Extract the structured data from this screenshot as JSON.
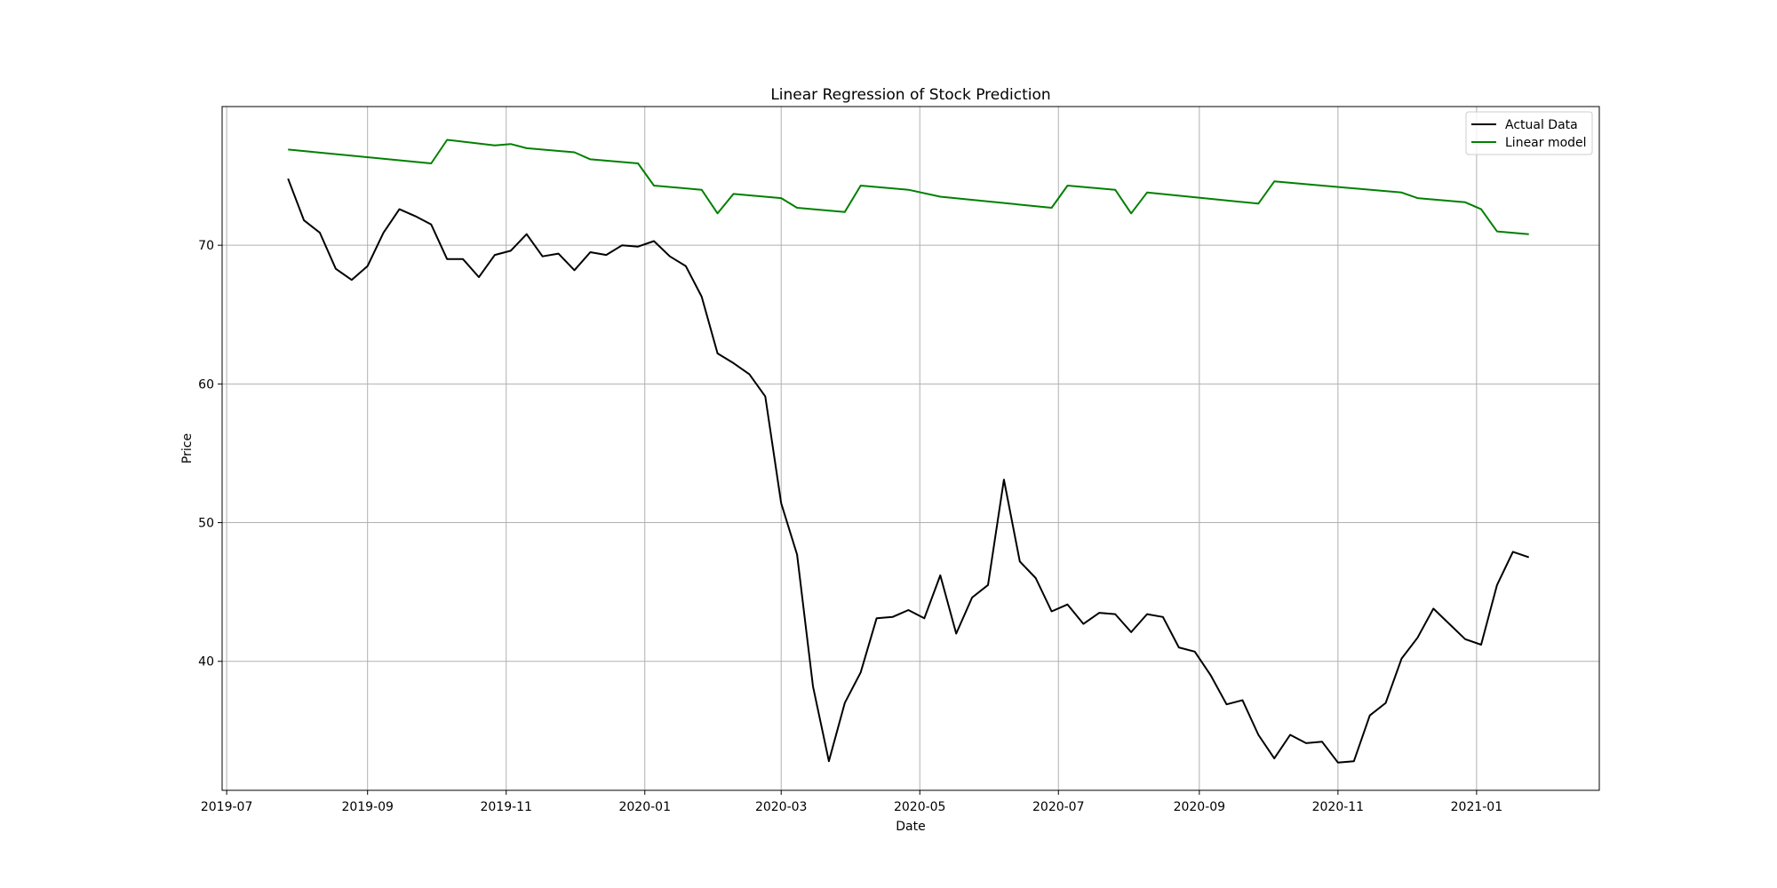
{
  "chart_data": {
    "type": "line",
    "title": "Linear Regression of Stock Prediction",
    "xlabel": "Date",
    "ylabel": "Price",
    "x_ticks": [
      "2019-07",
      "2019-09",
      "2019-11",
      "2020-01",
      "2020-03",
      "2020-05",
      "2020-07",
      "2020-09",
      "2020-11",
      "2021-01"
    ],
    "x_tick_dates": [
      "2019-07-01",
      "2019-09-01",
      "2019-11-01",
      "2020-01-01",
      "2020-03-01",
      "2020-05-01",
      "2020-07-01",
      "2020-09-01",
      "2020-11-01",
      "2021-01-01"
    ],
    "xlim": [
      "2019-06-29",
      "2021-02-24"
    ],
    "y_ticks": [
      40,
      50,
      60,
      70
    ],
    "ylim": [
      30.7,
      80.0
    ],
    "grid": true,
    "legend_position": "top-right",
    "series": [
      {
        "name": "Actual Data",
        "color": "#000000",
        "points": [
          [
            "2019-07-28",
            74.8
          ],
          [
            "2019-08-04",
            71.8
          ],
          [
            "2019-08-11",
            70.9
          ],
          [
            "2019-08-18",
            68.3
          ],
          [
            "2019-08-25",
            67.5
          ],
          [
            "2019-09-01",
            68.5
          ],
          [
            "2019-09-08",
            70.9
          ],
          [
            "2019-09-15",
            72.6
          ],
          [
            "2019-09-22",
            72.1
          ],
          [
            "2019-09-29",
            71.5
          ],
          [
            "2019-10-06",
            69.0
          ],
          [
            "2019-10-13",
            69.0
          ],
          [
            "2019-10-20",
            67.7
          ],
          [
            "2019-10-27",
            69.3
          ],
          [
            "2019-11-03",
            69.6
          ],
          [
            "2019-11-10",
            70.8
          ],
          [
            "2019-11-17",
            69.2
          ],
          [
            "2019-11-24",
            69.4
          ],
          [
            "2019-12-01",
            68.2
          ],
          [
            "2019-12-08",
            69.5
          ],
          [
            "2019-12-15",
            69.3
          ],
          [
            "2019-12-22",
            70.0
          ],
          [
            "2019-12-29",
            69.9
          ],
          [
            "2020-01-05",
            70.3
          ],
          [
            "2020-01-12",
            69.2
          ],
          [
            "2020-01-19",
            68.5
          ],
          [
            "2020-01-26",
            66.3
          ],
          [
            "2020-02-02",
            62.2
          ],
          [
            "2020-02-09",
            61.5
          ],
          [
            "2020-02-16",
            60.7
          ],
          [
            "2020-02-23",
            59.1
          ],
          [
            "2020-03-01",
            51.4
          ],
          [
            "2020-03-08",
            47.7
          ],
          [
            "2020-03-15",
            38.2
          ],
          [
            "2020-03-22",
            32.8
          ],
          [
            "2020-03-29",
            37.0
          ],
          [
            "2020-04-05",
            39.2
          ],
          [
            "2020-04-12",
            43.1
          ],
          [
            "2020-04-19",
            43.2
          ],
          [
            "2020-04-26",
            43.7
          ],
          [
            "2020-05-03",
            43.1
          ],
          [
            "2020-05-10",
            46.2
          ],
          [
            "2020-05-17",
            42.0
          ],
          [
            "2020-05-24",
            44.6
          ],
          [
            "2020-05-31",
            45.5
          ],
          [
            "2020-06-07",
            53.1
          ],
          [
            "2020-06-14",
            47.2
          ],
          [
            "2020-06-21",
            46.0
          ],
          [
            "2020-06-28",
            43.6
          ],
          [
            "2020-07-05",
            44.1
          ],
          [
            "2020-07-12",
            42.7
          ],
          [
            "2020-07-19",
            43.5
          ],
          [
            "2020-07-26",
            43.4
          ],
          [
            "2020-08-02",
            42.1
          ],
          [
            "2020-08-09",
            43.4
          ],
          [
            "2020-08-16",
            43.2
          ],
          [
            "2020-08-23",
            41.0
          ],
          [
            "2020-08-30",
            40.7
          ],
          [
            "2020-09-06",
            39.0
          ],
          [
            "2020-09-13",
            36.9
          ],
          [
            "2020-09-20",
            37.2
          ],
          [
            "2020-09-27",
            34.7
          ],
          [
            "2020-10-04",
            33.0
          ],
          [
            "2020-10-11",
            34.7
          ],
          [
            "2020-10-18",
            34.1
          ],
          [
            "2020-10-25",
            34.2
          ],
          [
            "2020-11-01",
            32.7
          ],
          [
            "2020-11-08",
            32.8
          ],
          [
            "2020-11-15",
            36.1
          ],
          [
            "2020-11-22",
            37.0
          ],
          [
            "2020-11-29",
            40.2
          ],
          [
            "2020-12-06",
            41.7
          ],
          [
            "2020-12-13",
            43.8
          ],
          [
            "2020-12-20",
            42.7
          ],
          [
            "2020-12-27",
            41.6
          ],
          [
            "2021-01-03",
            41.2
          ],
          [
            "2021-01-10",
            45.5
          ],
          [
            "2021-01-17",
            47.9
          ],
          [
            "2021-01-24",
            47.5
          ]
        ]
      },
      {
        "name": "Linear model",
        "color": "#008000",
        "points": [
          [
            "2019-07-28",
            76.9
          ],
          [
            "2019-09-29",
            75.9
          ],
          [
            "2019-10-06",
            77.6
          ],
          [
            "2019-10-27",
            77.2
          ],
          [
            "2019-11-03",
            77.3
          ],
          [
            "2019-11-10",
            77.0
          ],
          [
            "2019-12-01",
            76.7
          ],
          [
            "2019-12-08",
            76.2
          ],
          [
            "2019-12-29",
            75.9
          ],
          [
            "2020-01-05",
            74.3
          ],
          [
            "2020-01-26",
            74.0
          ],
          [
            "2020-02-02",
            72.3
          ],
          [
            "2020-02-09",
            73.7
          ],
          [
            "2020-03-01",
            73.4
          ],
          [
            "2020-03-08",
            72.7
          ],
          [
            "2020-03-29",
            72.4
          ],
          [
            "2020-04-05",
            74.3
          ],
          [
            "2020-04-26",
            74.0
          ],
          [
            "2020-05-10",
            73.5
          ],
          [
            "2020-06-28",
            72.7
          ],
          [
            "2020-07-05",
            74.3
          ],
          [
            "2020-07-26",
            74.0
          ],
          [
            "2020-08-02",
            72.3
          ],
          [
            "2020-08-09",
            73.8
          ],
          [
            "2020-09-27",
            73.0
          ],
          [
            "2020-10-04",
            74.6
          ],
          [
            "2020-11-29",
            73.8
          ],
          [
            "2020-12-06",
            73.4
          ],
          [
            "2020-12-27",
            73.1
          ],
          [
            "2021-01-03",
            72.6
          ],
          [
            "2021-01-10",
            71.0
          ],
          [
            "2021-01-24",
            70.8
          ]
        ]
      }
    ]
  }
}
